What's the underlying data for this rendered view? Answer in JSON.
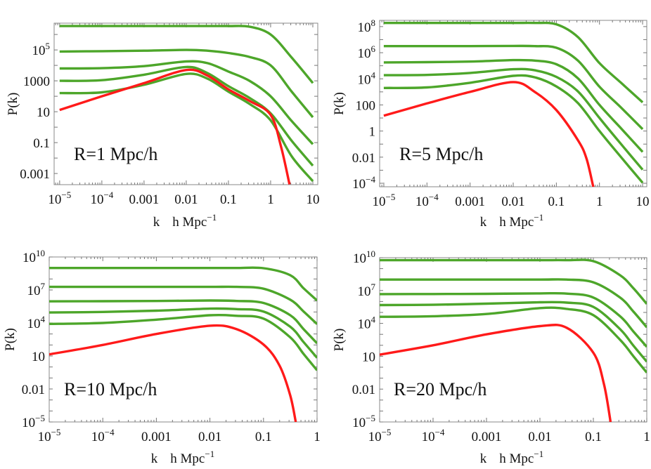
{
  "chart_data": [
    {
      "type": "line",
      "annotation": "R=1 Mpc/h",
      "ylabel": "P(k)",
      "xlabel": {
        "main": "k",
        "unit": "h Mpc",
        "unit_sup": "−1"
      },
      "xscale": "log",
      "yscale": "log",
      "xlim": [
        7.4e-06,
        13.1
      ],
      "ylim": [
        0.00019,
        5400000.0
      ],
      "grid": false,
      "xticks": [
        {
          "value": 1e-05,
          "label": "10",
          "sup": "−5"
        },
        {
          "value": 0.0001,
          "label": "10",
          "sup": "−4"
        },
        {
          "value": 0.001,
          "label": "0.001",
          "sup": ""
        },
        {
          "value": 0.01,
          "label": "0.01",
          "sup": ""
        },
        {
          "value": 0.1,
          "label": "0.1",
          "sup": ""
        },
        {
          "value": 1,
          "label": "1",
          "sup": ""
        },
        {
          "value": 10,
          "label": "10",
          "sup": ""
        }
      ],
      "yticks": [
        {
          "value": 0.001,
          "label": "0.001",
          "sup": ""
        },
        {
          "value": 0.1,
          "label": "0.1",
          "sup": ""
        },
        {
          "value": 10,
          "label": "10",
          "sup": ""
        },
        {
          "value": 1000,
          "label": "1000",
          "sup": ""
        },
        {
          "value": 100000.0,
          "label": "10",
          "sup": "5"
        }
      ],
      "series": [
        {
          "color": "#4da62a",
          "k": [
            1e-05,
            0.0001,
            0.001,
            0.01,
            0.0316,
            0.1,
            0.316,
            1,
            3.16,
            10
          ],
          "P": [
            3500000.0,
            3500000.0,
            3500000.0,
            3500000.0,
            3500000.0,
            3500000.0,
            3200000.0,
            1000000.0,
            32000.0,
            720
          ]
        },
        {
          "color": "#4da62a",
          "k": [
            1e-05,
            0.0001,
            0.001,
            0.01,
            0.0316,
            0.1,
            0.316,
            1,
            3.16,
            10
          ],
          "P": [
            79000.0,
            83000.0,
            89000.0,
            100000.0,
            89000.0,
            63000.0,
            35000.0,
            10000.0,
            200,
            4.4
          ]
        },
        {
          "color": "#4da62a",
          "k": [
            1e-05,
            0.0001,
            0.001,
            0.01,
            0.0316,
            0.1,
            0.316,
            1,
            3.16,
            10
          ],
          "P": [
            6300,
            6600,
            8900,
            18000.0,
            14000.0,
            4000,
            1000,
            100,
            2.5,
            0.079
          ]
        },
        {
          "color": "#4da62a",
          "k": [
            1e-05,
            0.0001,
            0.001,
            0.01,
            0.0316,
            0.1,
            0.316,
            1,
            3.16,
            10
          ],
          "P": [
            1000,
            1100,
            2500,
            7900,
            3200,
            450,
            79,
            7.9,
            0.13,
            0.0032
          ]
        },
        {
          "color": "#4da62a",
          "k": [
            1e-05,
            0.0001,
            0.001,
            0.01,
            0.0316,
            0.1,
            0.316,
            1,
            3.16,
            10
          ],
          "P": [
            160,
            180,
            560,
            2800,
            1400,
            200,
            32,
            2.8,
            0.013,
            0.00032
          ]
        },
        {
          "color": "#ff1a1a",
          "k": [
            1e-05,
            0.0001,
            0.001,
            0.01,
            0.0316,
            0.1,
            0.316,
            1,
            1.78,
            2.8
          ],
          "P": [
            13,
            100,
            710,
            5000,
            2200,
            280,
            50,
            6.3,
            0.05,
            0.0002
          ]
        }
      ]
    },
    {
      "type": "line",
      "annotation": "R=5 Mpc/h",
      "ylabel": "P(k)",
      "xlabel": {
        "main": "k",
        "unit": "h Mpc",
        "unit_sup": "−1"
      },
      "xscale": "log",
      "yscale": "log",
      "xlim": [
        8e-06,
        12.5
      ],
      "ylim": [
        5.4e-05,
        300000000.0
      ],
      "grid": false,
      "xticks": [
        {
          "value": 1e-05,
          "label": "10",
          "sup": "−5"
        },
        {
          "value": 0.0001,
          "label": "10",
          "sup": "−4"
        },
        {
          "value": 0.001,
          "label": "0.001",
          "sup": ""
        },
        {
          "value": 0.01,
          "label": "0.01",
          "sup": ""
        },
        {
          "value": 0.1,
          "label": "0.1",
          "sup": ""
        },
        {
          "value": 1,
          "label": "1",
          "sup": ""
        },
        {
          "value": 10,
          "label": "10",
          "sup": ""
        }
      ],
      "yticks": [
        {
          "value": 0.0001,
          "label": "10",
          "sup": "−4"
        },
        {
          "value": 0.01,
          "label": "0.01",
          "sup": ""
        },
        {
          "value": 1,
          "label": "1",
          "sup": ""
        },
        {
          "value": 100,
          "label": "100",
          "sup": ""
        },
        {
          "value": 10000.0,
          "label": "10",
          "sup": "4"
        },
        {
          "value": 1000000.0,
          "label": "10",
          "sup": "6"
        },
        {
          "value": 100000000.0,
          "label": "10",
          "sup": "8"
        }
      ],
      "series": [
        {
          "color": "#4da62a",
          "k": [
            1e-05,
            0.0001,
            0.001,
            0.01,
            0.0316,
            0.1,
            0.316,
            1,
            3.16,
            10
          ],
          "P": [
            190000000.0,
            190000000.0,
            190000000.0,
            190000000.0,
            190000000.0,
            150000000.0,
            16000000.0,
            160000.0,
            5000,
            160
          ]
        },
        {
          "color": "#4da62a",
          "k": [
            1e-05,
            0.0001,
            0.001,
            0.01,
            0.0316,
            0.1,
            0.316,
            1,
            3.16,
            10
          ],
          "P": [
            3200000.0,
            3200000.0,
            3200000.0,
            3300000.0,
            3200000.0,
            2400000.0,
            250000.0,
            2500,
            63,
            1.4
          ]
        },
        {
          "color": "#4da62a",
          "k": [
            1e-05,
            0.0001,
            0.001,
            0.01,
            0.0316,
            0.1,
            0.316,
            1,
            3.16,
            10
          ],
          "P": [
            180000.0,
            190000.0,
            210000.0,
            270000.0,
            250000.0,
            130000.0,
            11000.0,
            100,
            1.6,
            0.025
          ]
        },
        {
          "color": "#4da62a",
          "k": [
            1e-05,
            0.0001,
            0.001,
            0.01,
            0.0316,
            0.1,
            0.316,
            1,
            3.16,
            10
          ],
          "P": [
            19000.0,
            20000.0,
            28000.0,
            54000.0,
            45000.0,
            14000.0,
            1100,
            10,
            0.1,
            0.0011
          ]
        },
        {
          "color": "#4da62a",
          "k": [
            1e-05,
            0.0001,
            0.001,
            0.01,
            0.0316,
            0.1,
            0.316,
            1,
            3.16,
            10
          ],
          "P": [
            2000,
            2200,
            5000,
            17000.0,
            13000.0,
            2600,
            140,
            1,
            0.01,
            0.00011
          ]
        },
        {
          "color": "#ff1a1a",
          "k": [
            1e-05,
            0.0001,
            0.001,
            0.01,
            0.0316,
            0.1,
            0.316,
            0.5,
            0.72
          ],
          "P": [
            15,
            130,
            1000,
            5600,
            1000,
            40,
            0.2,
            0.0079,
            5e-05
          ]
        }
      ]
    },
    {
      "type": "line",
      "annotation": "R=10 Mpc/h",
      "ylabel": "P(k)",
      "xlabel": {
        "main": "k",
        "unit": "h Mpc",
        "unit_sup": "−1"
      },
      "xscale": "log",
      "yscale": "log",
      "xlim": [
        1e-05,
        1
      ],
      "ylim": [
        1e-05,
        10000000000.0
      ],
      "grid": false,
      "xticks": [
        {
          "value": 1e-05,
          "label": "10",
          "sup": "−5"
        },
        {
          "value": 0.0001,
          "label": "10",
          "sup": "−4"
        },
        {
          "value": 0.001,
          "label": "0.001",
          "sup": ""
        },
        {
          "value": 0.01,
          "label": "0.01",
          "sup": ""
        },
        {
          "value": 0.1,
          "label": "0.1",
          "sup": ""
        },
        {
          "value": 1,
          "label": "1",
          "sup": ""
        }
      ],
      "yticks": [
        {
          "value": 1e-05,
          "label": "10",
          "sup": "−5"
        },
        {
          "value": 0.01,
          "label": "0.01",
          "sup": ""
        },
        {
          "value": 10,
          "label": "10",
          "sup": ""
        },
        {
          "value": 10000.0,
          "label": "10",
          "sup": "4"
        },
        {
          "value": 10000000.0,
          "label": "10",
          "sup": "7"
        },
        {
          "value": 10000000000.0,
          "label": "10",
          "sup": "10"
        }
      ],
      "series": [
        {
          "color": "#4da62a",
          "k": [
            1e-05,
            0.0001,
            0.001,
            0.01,
            0.0316,
            0.1,
            0.316,
            0.562,
            1
          ],
          "P": [
            1000000000.0,
            1000000000.0,
            1000000000.0,
            1000000000.0,
            1000000000.0,
            950000000.0,
            220000000.0,
            14000000.0,
            1100000.0
          ]
        },
        {
          "color": "#4da62a",
          "k": [
            1e-05,
            0.0001,
            0.001,
            0.01,
            0.0316,
            0.1,
            0.316,
            0.562,
            1
          ],
          "P": [
            19000000.0,
            19000000.0,
            19000000.0,
            19000000.0,
            19000000.0,
            13000000.0,
            1300000.0,
            110000.0,
            7900
          ]
        },
        {
          "color": "#4da62a",
          "k": [
            1e-05,
            0.0001,
            0.001,
            0.01,
            0.0316,
            0.1,
            0.316,
            0.562,
            1
          ],
          "P": [
            930000.0,
            950000.0,
            1000000.0,
            1100000.0,
            1000000.0,
            660000.0,
            50000.0,
            2700,
            140
          ]
        },
        {
          "color": "#4da62a",
          "k": [
            1e-05,
            0.0001,
            0.001,
            0.01,
            0.0316,
            0.1,
            0.316,
            0.562,
            1
          ],
          "P": [
            89000.0,
            100000.0,
            130000.0,
            200000.0,
            180000.0,
            110000.0,
            4500,
            180,
            6.8
          ]
        },
        {
          "color": "#4da62a",
          "k": [
            1e-05,
            0.0001,
            0.001,
            0.01,
            0.0316,
            0.1,
            0.316,
            0.562,
            1
          ],
          "P": [
            8300,
            10000.0,
            20000.0,
            50000.0,
            45000.0,
            25000.0,
            490,
            15,
            0.5
          ]
        },
        {
          "color": "#ff1a1a",
          "k": [
            1e-05,
            0.0001,
            0.001,
            0.01,
            0.0316,
            0.1,
            0.2,
            0.316,
            0.4
          ],
          "P": [
            14,
            100,
            1000,
            5600,
            2700,
            110,
            1.3,
            0.0025,
            1e-05
          ]
        }
      ]
    },
    {
      "type": "line",
      "annotation": "R=20 Mpc/h",
      "ylabel": "P(k)",
      "xlabel": {
        "main": "k",
        "unit": "h Mpc",
        "unit_sup": "−1"
      },
      "xscale": "log",
      "yscale": "log",
      "xlim": [
        1e-05,
        1
      ],
      "ylim": [
        1e-05,
        10000000000.0
      ],
      "grid": false,
      "xticks": [
        {
          "value": 1e-05,
          "label": "10",
          "sup": "−5"
        },
        {
          "value": 0.0001,
          "label": "10",
          "sup": "−4"
        },
        {
          "value": 0.001,
          "label": "0.001",
          "sup": ""
        },
        {
          "value": 0.01,
          "label": "0.01",
          "sup": ""
        },
        {
          "value": 0.1,
          "label": "0.1",
          "sup": ""
        },
        {
          "value": 1,
          "label": "1",
          "sup": ""
        }
      ],
      "yticks": [
        {
          "value": 1e-05,
          "label": "10",
          "sup": "−5"
        },
        {
          "value": 0.01,
          "label": "0.01",
          "sup": ""
        },
        {
          "value": 10,
          "label": "10",
          "sup": ""
        },
        {
          "value": 10000.0,
          "label": "10",
          "sup": "4"
        },
        {
          "value": 10000000.0,
          "label": "10",
          "sup": "7"
        },
        {
          "value": 10000000000.0,
          "label": "10",
          "sup": "10"
        }
      ],
      "series": [
        {
          "color": "#4da62a",
          "k": [
            1e-05,
            0.0001,
            0.001,
            0.01,
            0.0316,
            0.1,
            0.316,
            0.562,
            1
          ],
          "P": [
            5900000000.0,
            5900000000.0,
            5900000000.0,
            5900000000.0,
            5900000000.0,
            4800000000.0,
            250000000.0,
            16000000.0,
            600000.0
          ]
        },
        {
          "color": "#4da62a",
          "k": [
            1e-05,
            0.0001,
            0.001,
            0.01,
            0.0316,
            0.1,
            0.316,
            0.562,
            1
          ],
          "P": [
            100000000.0,
            100000000.0,
            100000000.0,
            100000000.0,
            100000000.0,
            56000000.0,
            2300000.0,
            120000.0,
            4400
          ]
        },
        {
          "color": "#4da62a",
          "k": [
            1e-05,
            0.0001,
            0.001,
            0.01,
            0.0316,
            0.1,
            0.316,
            0.562,
            1
          ],
          "P": [
            4700000.0,
            4800000.0,
            5000000.0,
            5500000.0,
            5200000.0,
            2300000.0,
            45000.0,
            1800,
            72
          ]
        },
        {
          "color": "#4da62a",
          "k": [
            1e-05,
            0.0001,
            0.001,
            0.01,
            0.0316,
            0.1,
            0.316,
            0.562,
            1
          ],
          "P": [
            470000.0,
            500000.0,
            630000.0,
            850000.0,
            790000.0,
            320000.0,
            3000,
            93,
            3.2
          ]
        },
        {
          "color": "#4da62a",
          "k": [
            1e-05,
            0.0001,
            0.001,
            0.01,
            0.0316,
            0.1,
            0.316,
            0.562,
            1
          ],
          "P": [
            40000.0,
            45000.0,
            72000.0,
            250000.0,
            210000.0,
            56000.0,
            320,
            10,
            0.32
          ]
        },
        {
          "color": "#ff1a1a",
          "k": [
            1e-05,
            0.0001,
            0.001,
            0.01,
            0.0316,
            0.1,
            0.158,
            0.21
          ],
          "P": [
            14,
            100,
            1000,
            5600,
            4000,
            21,
            0.028,
            1e-05
          ]
        }
      ]
    }
  ]
}
